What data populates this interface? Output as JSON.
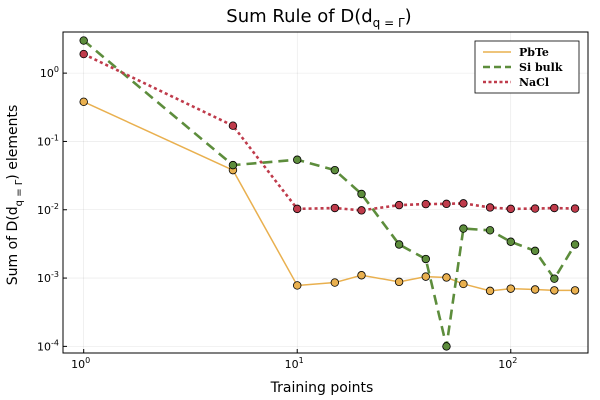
{
  "chart_data": {
    "type": "line",
    "title": "Sum Rule of D(d",
    "title_sub": "q = Γ",
    "title_close": ")",
    "xlabel": "Training points",
    "ylabel": "Sum of D(d",
    "ylabel_sub": "q = Γ",
    "ylabel_close": ") elements",
    "x_scale": "log",
    "y_scale": "log",
    "xlim": [
      0.8,
      230
    ],
    "ylim": [
      8e-05,
      4
    ],
    "x_ticks": [
      {
        "value": 1,
        "base": "10",
        "exp": "0"
      },
      {
        "value": 10,
        "base": "10",
        "exp": "1"
      },
      {
        "value": 100,
        "base": "10",
        "exp": "2"
      }
    ],
    "y_ticks": [
      {
        "value": 0.0001,
        "base": "10",
        "exp": "-4"
      },
      {
        "value": 0.001,
        "base": "10",
        "exp": "-3"
      },
      {
        "value": 0.01,
        "base": "10",
        "exp": "-2"
      },
      {
        "value": 0.1,
        "base": "10",
        "exp": "-1"
      },
      {
        "value": 1,
        "base": "10",
        "exp": "0"
      }
    ],
    "grid": true,
    "legend_position": "top-right",
    "series": [
      {
        "name": "PbTe",
        "color": "#e9b04f",
        "dash": "solid",
        "x": [
          1,
          5,
          10,
          15,
          20,
          30,
          40,
          50,
          60,
          80,
          100,
          130,
          160,
          200
        ],
        "y": [
          0.38,
          0.038,
          0.00078,
          0.00086,
          0.0011,
          0.00088,
          0.00105,
          0.00102,
          0.00082,
          0.00065,
          0.0007,
          0.00068,
          0.00066,
          0.00066
        ]
      },
      {
        "name": "Si bulk",
        "color": "#5d8d3c",
        "dash": "dashed",
        "x": [
          1,
          5,
          10,
          15,
          20,
          30,
          40,
          50,
          60,
          80,
          100,
          130,
          160,
          200
        ],
        "y": [
          3.0,
          0.045,
          0.054,
          0.038,
          0.017,
          0.0031,
          0.0019,
          0.0001,
          0.0053,
          0.005,
          0.0034,
          0.0025,
          0.00098,
          0.0031
        ]
      },
      {
        "name": "NaCl",
        "color": "#bf3b4b",
        "dash": "dotted",
        "x": [
          1,
          5,
          10,
          15,
          20,
          30,
          40,
          50,
          60,
          80,
          100,
          130,
          160,
          200
        ],
        "y": [
          1.9,
          0.17,
          0.0103,
          0.0106,
          0.0098,
          0.0117,
          0.0121,
          0.0122,
          0.0124,
          0.0108,
          0.0103,
          0.0104,
          0.0106,
          0.0104
        ]
      }
    ]
  }
}
